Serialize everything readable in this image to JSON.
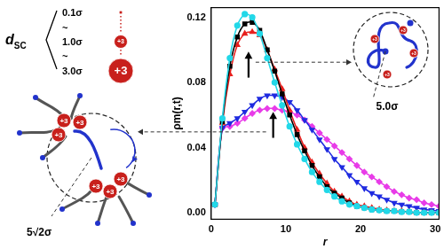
{
  "chart_data": {
    "type": "line",
    "xlabel": "r",
    "ylabel": "ρm(r,t)",
    "xlim": [
      0,
      30.5
    ],
    "ylim": [
      -0.004,
      0.126
    ],
    "xticks": [
      0,
      10,
      20,
      30
    ],
    "yticks": [
      {
        "value": 0,
        "label": "0.00"
      },
      {
        "value": 0.04,
        "label": "0.04"
      },
      {
        "value": 0.08,
        "label": "0.08"
      },
      {
        "value": 0.12,
        "label": "0.12"
      }
    ],
    "grid": false,
    "x": [
      0.5,
      1.5,
      2.5,
      3.5,
      4.5,
      5.5,
      6.5,
      7.5,
      8.5,
      9.5,
      10.5,
      11.5,
      12.5,
      13.5,
      14.5,
      15.5,
      16.5,
      17.5,
      18.5,
      19.5,
      20.5,
      21.5,
      22.5,
      23.5,
      24.5,
      25.5,
      26.5,
      27.5,
      28.5,
      29.5,
      30.5
    ],
    "series": [
      {
        "color": "#22d8e8",
        "marker": "circle",
        "values": [
          0.005,
          0.058,
          0.095,
          0.115,
          0.122,
          0.12,
          0.11,
          0.095,
          0.08,
          0.066,
          0.053,
          0.042,
          0.033,
          0.025,
          0.019,
          0.014,
          0.01,
          0.007,
          0.005,
          0.004,
          0.003,
          0.002,
          0.0015,
          0.001,
          0.001,
          0.0005,
          0.0005,
          0,
          0,
          0,
          0
        ]
      },
      {
        "color": "#000000",
        "marker": "square",
        "values": [
          0.005,
          0.056,
          0.09,
          0.108,
          0.116,
          0.117,
          0.112,
          0.1,
          0.087,
          0.073,
          0.06,
          0.048,
          0.038,
          0.029,
          0.022,
          0.016,
          0.012,
          0.009,
          0.006,
          0.004,
          0.003,
          0.002,
          0.0015,
          0.001,
          0.001,
          0.0005,
          0.0005,
          0,
          0,
          0,
          0
        ]
      },
      {
        "color": "#e8201e",
        "marker": "triangle",
        "values": [
          0.005,
          0.055,
          0.085,
          0.103,
          0.11,
          0.111,
          0.109,
          0.1,
          0.088,
          0.076,
          0.063,
          0.051,
          0.04,
          0.031,
          0.024,
          0.018,
          0.013,
          0.01,
          0.007,
          0.005,
          0.004,
          0.003,
          0.002,
          0.0015,
          0.001,
          0.001,
          0.0005,
          0,
          0,
          0,
          0
        ]
      },
      {
        "color": "#1f2be0",
        "marker": "triangle_down",
        "values": [
          0.005,
          0.052,
          0.055,
          0.058,
          0.062,
          0.066,
          0.07,
          0.072,
          0.072,
          0.071,
          0.068,
          0.063,
          0.057,
          0.051,
          0.045,
          0.039,
          0.033,
          0.028,
          0.023,
          0.019,
          0.015,
          0.012,
          0.01,
          0.008,
          0.006,
          0.005,
          0.004,
          0.003,
          0.002,
          0.0015,
          0.001
        ]
      },
      {
        "color": "#e83ce8",
        "marker": "diamond",
        "values": [
          0.005,
          0.052,
          0.053,
          0.055,
          0.058,
          0.061,
          0.063,
          0.064,
          0.064,
          0.063,
          0.062,
          0.06,
          0.057,
          0.053,
          0.049,
          0.045,
          0.041,
          0.037,
          0.033,
          0.029,
          0.025,
          0.022,
          0.019,
          0.016,
          0.013,
          0.011,
          0.009,
          0.008,
          0.006,
          0.005,
          0.004
        ]
      }
    ],
    "arrows": [
      {
        "x": 5,
        "y_start": 0.083,
        "y_end": 0.099
      },
      {
        "x": 8.3,
        "y_start": 0.046,
        "y_end": 0.062
      }
    ]
  },
  "schematic": {
    "symbol": "d",
    "symbol_subscript": "SC",
    "sizes": [
      "0.1σ",
      "~",
      "1.0σ",
      "~",
      "3.0σ"
    ],
    "charge": "+3",
    "inset_right_label": "5.0σ",
    "inset_left_label": "5√2σ"
  }
}
